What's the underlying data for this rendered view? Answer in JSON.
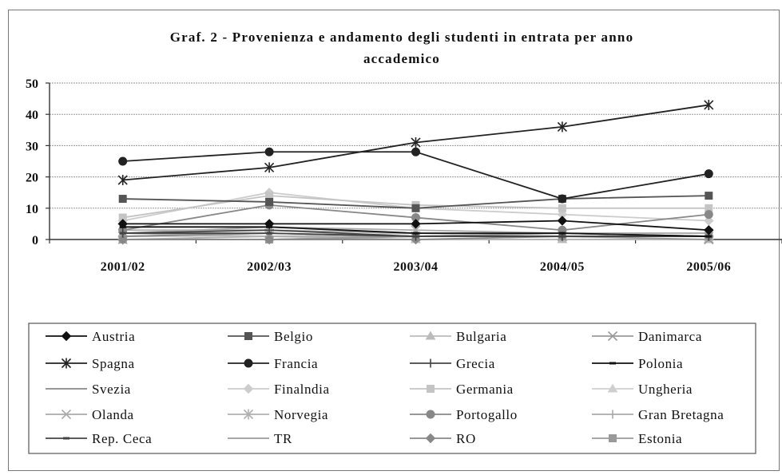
{
  "chart_data": {
    "type": "line",
    "title": "Graf. 2 - Provenienza e andamento degli studenti in entrata per anno accademico",
    "title_lines": [
      "Graf. 2 - Provenienza e andamento degli studenti in entrata per anno",
      "accademico"
    ],
    "xlabel": "",
    "ylabel": "",
    "ylim": [
      0,
      50
    ],
    "yticks": [
      0,
      10,
      20,
      30,
      40,
      50
    ],
    "grid": true,
    "legend_position": "bottom",
    "categories": [
      "2001/02",
      "2002/03",
      "2003/04",
      "2004/05",
      "2005/06"
    ],
    "series": [
      {
        "name": "Austria",
        "values": [
          5,
          5,
          5,
          6,
          3
        ],
        "color": "#111111",
        "marker": "diamond"
      },
      {
        "name": "Belgio",
        "values": [
          13,
          12,
          10,
          13,
          14
        ],
        "color": "#555555",
        "marker": "square"
      },
      {
        "name": "Bulgaria",
        "values": [
          2,
          1,
          0,
          0,
          0
        ],
        "color": "#bbbbbb",
        "marker": "triangle"
      },
      {
        "name": "Danimarca",
        "values": [
          1,
          2,
          1,
          1,
          0
        ],
        "color": "#999999",
        "marker": "x"
      },
      {
        "name": "Spagna",
        "values": [
          19,
          23,
          31,
          36,
          43
        ],
        "color": "#222222",
        "marker": "star"
      },
      {
        "name": "Francia",
        "values": [
          25,
          28,
          28,
          13,
          21
        ],
        "color": "#222222",
        "marker": "circle"
      },
      {
        "name": "Grecia",
        "values": [
          2,
          3,
          1,
          1,
          1
        ],
        "color": "#444444",
        "marker": "plus"
      },
      {
        "name": "Polonia",
        "values": [
          4,
          4,
          2,
          2,
          1
        ],
        "color": "#111111",
        "marker": "dash"
      },
      {
        "name": "Svezia",
        "values": [
          1,
          2,
          1,
          2,
          1
        ],
        "color": "#888888",
        "marker": "none"
      },
      {
        "name": "Finalndia",
        "values": [
          6,
          15,
          10,
          8,
          6
        ],
        "color": "#cccccc",
        "marker": "diamond"
      },
      {
        "name": "Germania",
        "values": [
          7,
          14,
          11,
          10,
          10
        ],
        "color": "#c4c4c4",
        "marker": "square"
      },
      {
        "name": "Ungheria",
        "values": [
          1,
          1,
          2,
          1,
          1
        ],
        "color": "#cfcfcf",
        "marker": "triangle"
      },
      {
        "name": "Olanda",
        "values": [
          2,
          4,
          3,
          2,
          2
        ],
        "color": "#aaaaaa",
        "marker": "x"
      },
      {
        "name": "Norvegia",
        "values": [
          0,
          1,
          1,
          1,
          1
        ],
        "color": "#b0b0b0",
        "marker": "star"
      },
      {
        "name": "Portogallo",
        "values": [
          3,
          11,
          7,
          3,
          8
        ],
        "color": "#888888",
        "marker": "circle"
      },
      {
        "name": "Gran Bretagna",
        "values": [
          3,
          3,
          2,
          2,
          2
        ],
        "color": "#aaaaaa",
        "marker": "plus"
      },
      {
        "name": "Rep. Ceca",
        "values": [
          2,
          2,
          1,
          1,
          1
        ],
        "color": "#444444",
        "marker": "dash"
      },
      {
        "name": "TR",
        "values": [
          0,
          0,
          1,
          2,
          1
        ],
        "color": "#999999",
        "marker": "none"
      },
      {
        "name": "RO",
        "values": [
          0,
          0,
          0,
          1,
          1
        ],
        "color": "#888888",
        "marker": "diamond"
      },
      {
        "name": "Estonia",
        "values": [
          0,
          0,
          1,
          1,
          1
        ],
        "color": "#999999",
        "marker": "square"
      }
    ]
  }
}
